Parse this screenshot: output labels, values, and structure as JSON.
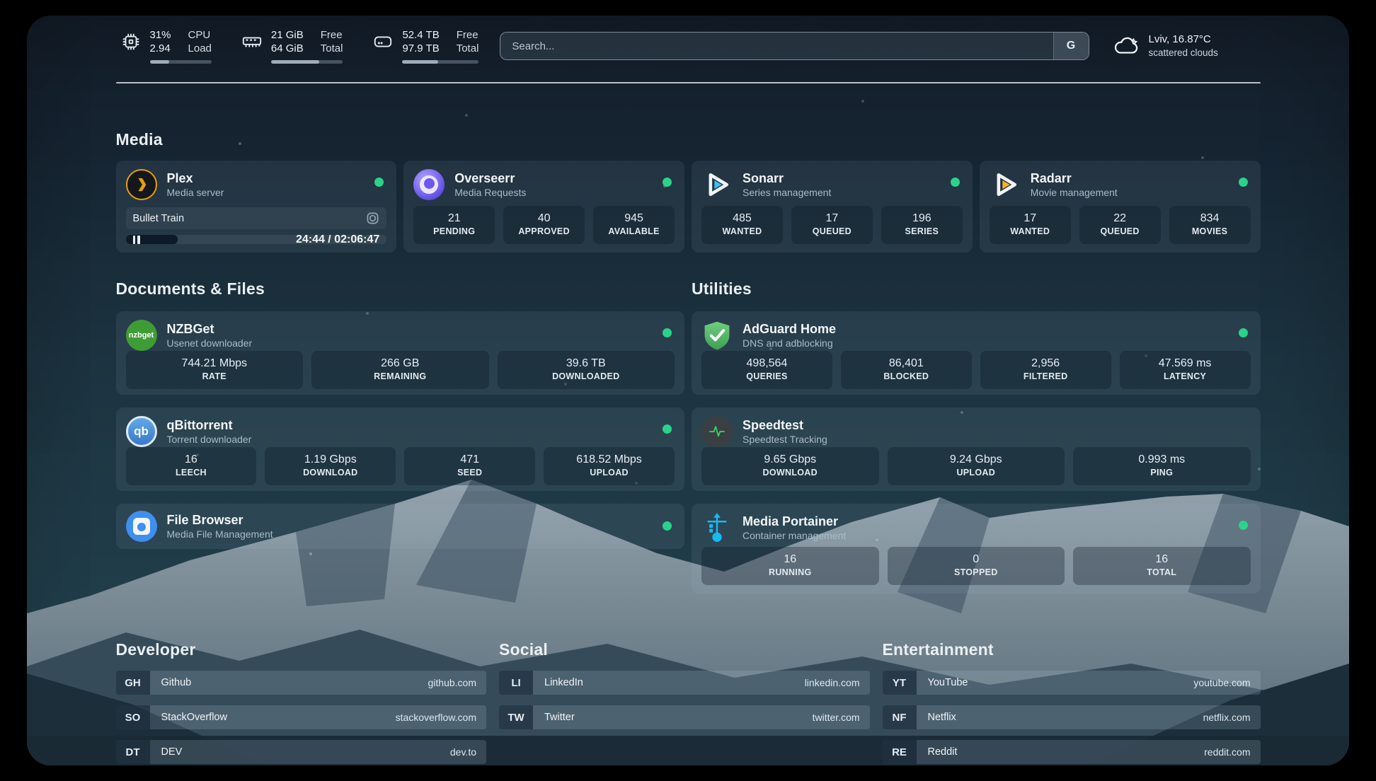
{
  "header": {
    "stats": [
      {
        "value_top": "31%",
        "value_bottom": "2.94",
        "label_top": "CPU",
        "label_bottom": "Load",
        "progress": 31
      },
      {
        "value_top": "21 GiB",
        "value_bottom": "64 GiB",
        "label_top": "Free",
        "label_bottom": "Total",
        "progress": 67
      },
      {
        "value_top": "52.4 TB",
        "value_bottom": "97.9 TB",
        "label_top": "Free",
        "label_bottom": "Total",
        "progress": 47
      }
    ],
    "search": {
      "placeholder": "Search...",
      "button": "G"
    },
    "weather": {
      "location_temp": "Lviv, 16.87°C",
      "condition": "scattered clouds"
    }
  },
  "sections": {
    "media": "Media",
    "documents": "Documents & Files",
    "utilities": "Utilities",
    "developer": "Developer",
    "social": "Social",
    "entertainment": "Entertainment"
  },
  "media": {
    "plex": {
      "title": "Plex",
      "subtitle": "Media server",
      "now_playing": "Bullet Train",
      "time": "24:44 / 02:06:47",
      "progress": 20
    },
    "overseerr": {
      "title": "Overseerr",
      "subtitle": "Media Requests",
      "stats": [
        {
          "value": "21",
          "label": "PENDING"
        },
        {
          "value": "40",
          "label": "APPROVED"
        },
        {
          "value": "945",
          "label": "AVAILABLE"
        }
      ]
    },
    "sonarr": {
      "title": "Sonarr",
      "subtitle": "Series management",
      "stats": [
        {
          "value": "485",
          "label": "WANTED"
        },
        {
          "value": "17",
          "label": "QUEUED"
        },
        {
          "value": "196",
          "label": "SERIES"
        }
      ]
    },
    "radarr": {
      "title": "Radarr",
      "subtitle": "Movie management",
      "stats": [
        {
          "value": "17",
          "label": "WANTED"
        },
        {
          "value": "22",
          "label": "QUEUED"
        },
        {
          "value": "834",
          "label": "MOVIES"
        }
      ]
    }
  },
  "documents": {
    "nzbget": {
      "title": "NZBGet",
      "subtitle": "Usenet downloader",
      "stats": [
        {
          "value": "744.21 Mbps",
          "label": "RATE"
        },
        {
          "value": "266 GB",
          "label": "REMAINING"
        },
        {
          "value": "39.6 TB",
          "label": "DOWNLOADED"
        }
      ]
    },
    "qbittorrent": {
      "title": "qBittorrent",
      "subtitle": "Torrent downloader",
      "stats": [
        {
          "value": "16",
          "label": "LEECH"
        },
        {
          "value": "1.19 Gbps",
          "label": "DOWNLOAD"
        },
        {
          "value": "471",
          "label": "SEED"
        },
        {
          "value": "618.52 Mbps",
          "label": "UPLOAD"
        }
      ]
    },
    "filebrowser": {
      "title": "File Browser",
      "subtitle": "Media File Management"
    }
  },
  "utilities": {
    "adguard": {
      "title": "AdGuard Home",
      "subtitle": "DNS and adblocking",
      "stats": [
        {
          "value": "498,564",
          "label": "QUERIES"
        },
        {
          "value": "86,401",
          "label": "BLOCKED"
        },
        {
          "value": "2,956",
          "label": "FILTERED"
        },
        {
          "value": "47.569 ms",
          "label": "LATENCY"
        }
      ]
    },
    "speedtest": {
      "title": "Speedtest",
      "subtitle": "Speedtest Tracking",
      "stats": [
        {
          "value": "9.65 Gbps",
          "label": "DOWNLOAD"
        },
        {
          "value": "9.24 Gbps",
          "label": "UPLOAD"
        },
        {
          "value": "0.993 ms",
          "label": "PING"
        }
      ]
    },
    "portainer": {
      "title": "Media Portainer",
      "subtitle": "Container management",
      "stats": [
        {
          "value": "16",
          "label": "RUNNING"
        },
        {
          "value": "0",
          "label": "STOPPED"
        },
        {
          "value": "16",
          "label": "TOTAL"
        }
      ]
    }
  },
  "links": {
    "developer": [
      {
        "abbr": "GH",
        "name": "Github",
        "domain": "github.com"
      },
      {
        "abbr": "SO",
        "name": "StackOverflow",
        "domain": "stackoverflow.com"
      },
      {
        "abbr": "DT",
        "name": "DEV",
        "domain": "dev.to"
      }
    ],
    "social": [
      {
        "abbr": "LI",
        "name": "LinkedIn",
        "domain": "linkedin.com"
      },
      {
        "abbr": "TW",
        "name": "Twitter",
        "domain": "twitter.com"
      }
    ],
    "entertainment": [
      {
        "abbr": "YT",
        "name": "YouTube",
        "domain": "youtube.com"
      },
      {
        "abbr": "NF",
        "name": "Netflix",
        "domain": "netflix.com"
      },
      {
        "abbr": "RE",
        "name": "Reddit",
        "domain": "reddit.com"
      }
    ]
  },
  "icons": {
    "nzbget_text": "nzbget",
    "qb_text": "qb"
  },
  "colors": {
    "status_online": "#2ad389",
    "accent_plex": "#e5a00d",
    "accent_sonarr": "#38c1f1",
    "accent_radarr": "#fdb024"
  }
}
